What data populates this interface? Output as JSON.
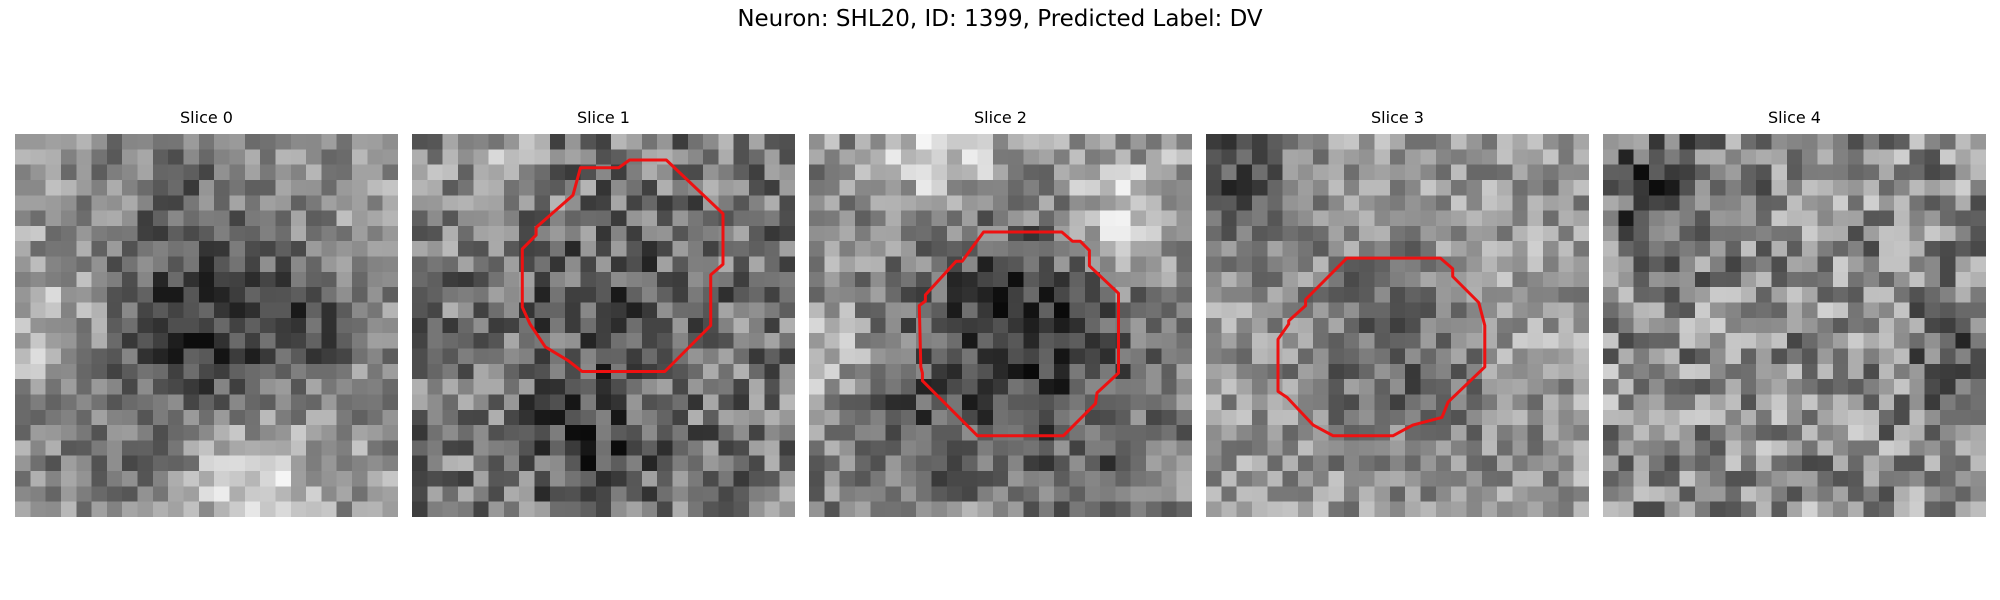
{
  "figure": {
    "title": "Neuron: SHL20, ID: 1399, Predicted Label: DV"
  },
  "colors": {
    "contour": "#ee1111",
    "colormap": "gray"
  },
  "panels": [
    {
      "label": "Slice 0",
      "has_contour": false
    },
    {
      "label": "Slice 1",
      "has_contour": true
    },
    {
      "label": "Slice 2",
      "has_contour": true
    },
    {
      "label": "Slice 3",
      "has_contour": true
    },
    {
      "label": "Slice 4",
      "has_contour": false
    }
  ]
}
